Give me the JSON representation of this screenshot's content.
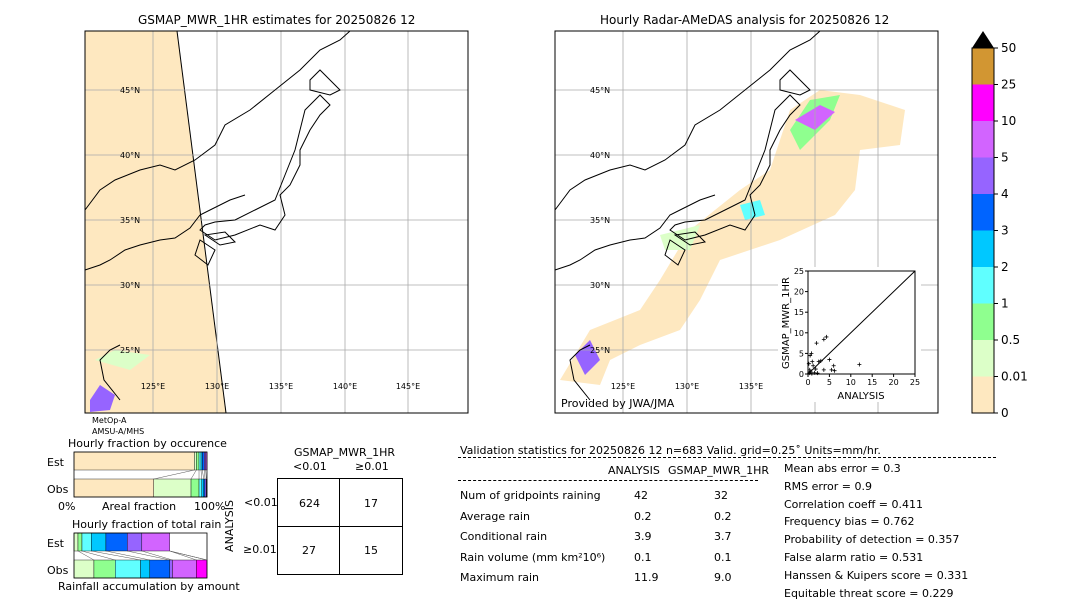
{
  "left_map": {
    "title": "GSMAP_MWR_1HR estimates for 20250826 12",
    "sensor_lines": [
      "MetOp-A",
      "AMSU-A/MHS"
    ]
  },
  "right_map": {
    "title": "Hourly Radar-AMeDAS analysis for 20250826 12",
    "credit": "Provided by JWA/JMA"
  },
  "lat_labels": [
    "45°N",
    "40°N",
    "35°N",
    "30°N",
    "25°N"
  ],
  "lon_labels": [
    "125°E",
    "130°E",
    "135°E",
    "140°E",
    "145°E"
  ],
  "colorbar": {
    "ticks": [
      "0",
      "0.01",
      "0.5",
      "1",
      "2",
      "3",
      "4",
      "5",
      "10",
      "25",
      "50"
    ],
    "colors": [
      "#fee8c0",
      "#dcffc8",
      "#8fff8f",
      "#60ffff",
      "#00c8ff",
      "#0064ff",
      "#9664ff",
      "#d264ff",
      "#ff00ff",
      "#d29632"
    ],
    "extend": "max"
  },
  "occurrence": {
    "title": "Hourly fraction by occurence",
    "rows": [
      "Est",
      "Obs"
    ],
    "xlabel": "Areal fraction",
    "x_min_label": "0%",
    "x_max_label": "100%",
    "est": [
      0.905,
      0.015,
      0.02,
      0.015,
      0.01,
      0.015,
      0.01,
      0.01
    ],
    "obs": [
      0.6,
      0.28,
      0.06,
      0.02,
      0.015,
      0.01,
      0.01,
      0.005
    ]
  },
  "total_rain": {
    "title": "Hourly fraction of total rain",
    "rows": [
      "Est",
      "Obs"
    ],
    "xlabel": "Rainfall accumulation by amount",
    "est": [
      0.03,
      0.03,
      0.07,
      0.11,
      0.16,
      0.11,
      0.21,
      0,
      0
    ],
    "obs": [
      0.15,
      0.16,
      0.19,
      0.07,
      0.15,
      0.02,
      0.18,
      0.08,
      0
    ]
  },
  "contingency": {
    "col_title": "GSMAP_MWR_1HR",
    "col_labels": [
      "<0.01",
      "≥0.01"
    ],
    "row_title": "ANALYSIS",
    "row_labels": [
      "<0.01",
      "≥0.01"
    ],
    "cells": [
      [
        "624",
        "17"
      ],
      [
        "27",
        "15"
      ]
    ]
  },
  "validation": {
    "header": "Validation statistics for 20250826 12  n=683 Valid. grid=0.25˚ Units=mm/hr.",
    "col_headers": [
      "ANALYSIS",
      "GSMAP_MWR_1HR"
    ],
    "rows": [
      {
        "label": "Num of gridpoints raining",
        "a": "42",
        "b": "32"
      },
      {
        "label": "Average rain",
        "a": "0.2",
        "b": "0.2"
      },
      {
        "label": "Conditional rain",
        "a": "3.9",
        "b": "3.7"
      },
      {
        "label": "Rain volume (mm km²10⁶)",
        "a": "0.1",
        "b": "0.1"
      },
      {
        "label": "Maximum rain",
        "a": "11.9",
        "b": "9.0"
      }
    ],
    "scores": [
      "Mean abs error =    0.3",
      "RMS error =    0.9",
      "Correlation coeff =  0.411",
      "Frequency bias =  0.762",
      "Probability of detection =  0.357",
      "False alarm ratio =  0.531",
      "Hanssen & Kuipers score =  0.331",
      "Equitable threat score =  0.229"
    ]
  },
  "chart_data": {
    "type": "scatter",
    "xlabel": "ANALYSIS",
    "ylabel": "GSMAP_MWR_1HR",
    "xlim": [
      0,
      25
    ],
    "ylim": [
      0,
      25
    ],
    "ticks": [
      "0",
      "5",
      "10",
      "15",
      "20",
      "25"
    ],
    "points": [
      [
        0.3,
        0.2
      ],
      [
        0.5,
        4.5
      ],
      [
        0.8,
        5
      ],
      [
        1,
        3
      ],
      [
        1.2,
        2
      ],
      [
        0.4,
        1
      ],
      [
        0.6,
        0.5
      ],
      [
        1.5,
        0.3
      ],
      [
        2,
        7.5
      ],
      [
        2.5,
        3
      ],
      [
        3,
        3.2
      ],
      [
        3.7,
        8.4
      ],
      [
        4.3,
        9
      ],
      [
        5,
        3.5
      ],
      [
        3.7,
        1
      ],
      [
        5.5,
        1
      ],
      [
        6,
        2
      ],
      [
        6.2,
        0.8
      ],
      [
        12,
        2.3
      ],
      [
        0.2,
        2.5
      ],
      [
        1.8,
        1.2
      ],
      [
        2.2,
        0.2
      ],
      [
        0.9,
        0.1
      ]
    ],
    "diagonal": true
  }
}
